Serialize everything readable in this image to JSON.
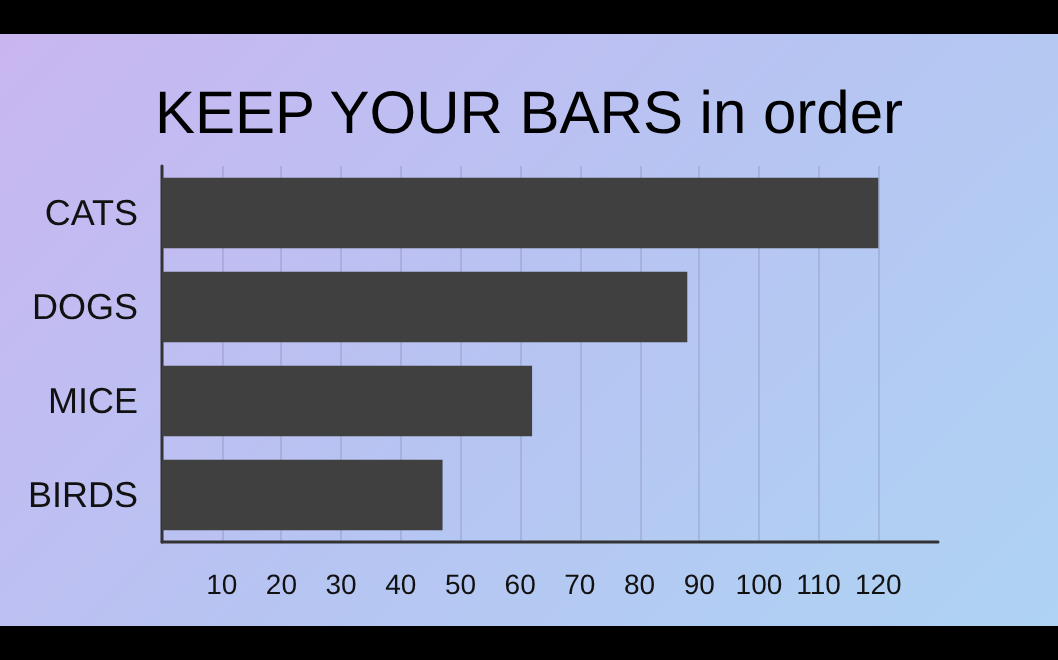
{
  "chart_data": {
    "type": "bar",
    "orientation": "horizontal",
    "title": "KEEP YOUR BARS in order",
    "categories": [
      "CATS",
      "DOGS",
      "MICE",
      "BIRDS"
    ],
    "values": [
      120,
      88,
      62,
      47
    ],
    "color": "#404040",
    "xlim": [
      0,
      130
    ],
    "xticks": [
      10,
      20,
      30,
      40,
      50,
      60,
      70,
      80,
      90,
      100,
      110,
      120
    ],
    "grid": "x"
  }
}
